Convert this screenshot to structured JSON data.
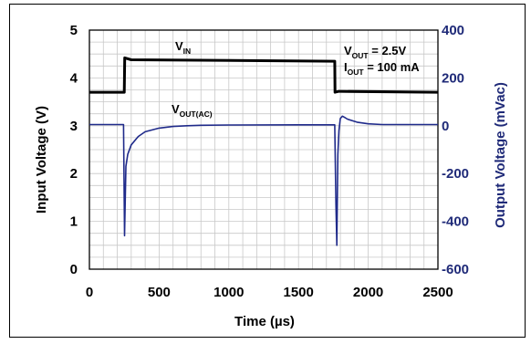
{
  "chart_data": {
    "type": "line",
    "title": "",
    "xlabel": "Time (µs)",
    "ylabel_left": "Input Voltage (V)",
    "ylabel_right": "Output Voltage (mVac)",
    "xlim": [
      0,
      2500
    ],
    "ylim_left": [
      0,
      5
    ],
    "ylim_right": [
      -600,
      400
    ],
    "x_ticks": [
      "0",
      "500",
      "1000",
      "1500",
      "2000",
      "2500"
    ],
    "y_left_ticks": [
      "0",
      "1",
      "2",
      "3",
      "4",
      "5"
    ],
    "y_right_ticks": [
      "-600",
      "-400",
      "-200",
      "0",
      "200",
      "400"
    ],
    "grid": true,
    "series": [
      {
        "name_main": "V",
        "name_sub": "IN",
        "axis": "left",
        "color": "#000000",
        "x": [
          0,
          250,
          253,
          300,
          1760,
          1762,
          1790,
          2500
        ],
        "y": [
          3.7,
          3.7,
          4.42,
          4.38,
          4.35,
          3.7,
          3.72,
          3.7
        ]
      },
      {
        "name_main": "V",
        "name_sub": "OUT(AC)",
        "axis": "right",
        "color": "#1f2a8a",
        "x": [
          0,
          245,
          252,
          262,
          275,
          300,
          350,
          400,
          500,
          600,
          700,
          800,
          1000,
          1500,
          1760,
          1768,
          1775,
          1782,
          1790,
          1800,
          1815,
          1830,
          1850,
          1880,
          1920,
          2000,
          2100,
          2500
        ],
        "y": [
          5,
          5,
          -460,
          -170,
          -120,
          -80,
          -45,
          -25,
          -10,
          -3,
          0,
          2,
          3,
          4,
          4,
          -330,
          -500,
          -120,
          -20,
          30,
          40,
          35,
          28,
          22,
          15,
          8,
          5,
          5
        ]
      }
    ],
    "annotations": [
      {
        "main": "V",
        "sub": "OUT",
        "rest": " = 2.5V"
      },
      {
        "main": "I",
        "sub": "OUT",
        "rest": " = 100 mA"
      }
    ]
  }
}
